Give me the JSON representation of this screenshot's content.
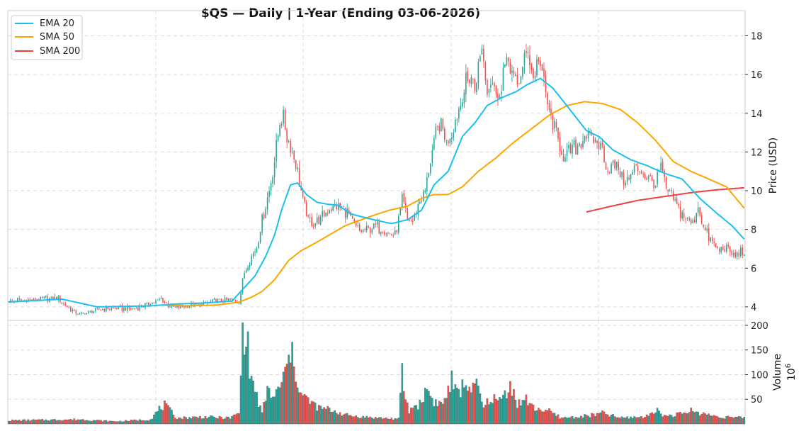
{
  "chart_data": {
    "type": "candlestick",
    "title": "$QS  —  Daily  |  1-Year (Ending 03-06-2026)",
    "price_panel": {
      "ylabel": "Price (USD)",
      "ylim": [
        3.3,
        19.3
      ],
      "yticks": [
        4,
        6,
        8,
        10,
        12,
        14,
        16,
        18
      ],
      "grid": true
    },
    "volume_panel": {
      "ylabel": "Volume",
      "unit_label": "10",
      "unit_exponent": "6",
      "ylim": [
        0,
        210
      ],
      "yticks": [
        50,
        100,
        150,
        200
      ],
      "grid": true,
      "up_color": "#26a69a",
      "down_color": "#ef5350"
    },
    "legend": {
      "position": "top-left",
      "entries": [
        {
          "label": "EMA 20",
          "color": "#19c0f0"
        },
        {
          "label": "SMA 50",
          "color": "#ffa500"
        },
        {
          "label": "SMA 200",
          "color": "#ef4040"
        }
      ]
    },
    "candle_colors": {
      "up": "#26a69a",
      "down": "#ef5350"
    },
    "price_anchors": [
      [
        0,
        4.3
      ],
      [
        10,
        4.35
      ],
      [
        20,
        4.45
      ],
      [
        28,
        4.4
      ],
      [
        32,
        4.1
      ],
      [
        36,
        3.8
      ],
      [
        40,
        3.6
      ],
      [
        45,
        3.7
      ],
      [
        52,
        3.9
      ],
      [
        62,
        3.9
      ],
      [
        70,
        3.9
      ],
      [
        78,
        4.1
      ],
      [
        86,
        4.4
      ],
      [
        90,
        4.1
      ],
      [
        94,
        3.95
      ],
      [
        100,
        4.05
      ],
      [
        108,
        4.1
      ],
      [
        116,
        4.3
      ],
      [
        126,
        4.35
      ],
      [
        130,
        4.3
      ],
      [
        133,
        5.8
      ],
      [
        137,
        6.6
      ],
      [
        140,
        7.1
      ],
      [
        143,
        8.5
      ],
      [
        147,
        10.0
      ],
      [
        150,
        11.6
      ],
      [
        153,
        13.5
      ],
      [
        155,
        13.7
      ],
      [
        157,
        12.8
      ],
      [
        160,
        12.0
      ],
      [
        163,
        11.0
      ],
      [
        166,
        9.5
      ],
      [
        169,
        8.5
      ],
      [
        172,
        8.3
      ],
      [
        176,
        8.5
      ],
      [
        180,
        9.0
      ],
      [
        184,
        9.2
      ],
      [
        188,
        9.1
      ],
      [
        192,
        8.8
      ],
      [
        195,
        8.2
      ],
      [
        198,
        7.9
      ],
      [
        202,
        8.0
      ],
      [
        206,
        8.2
      ],
      [
        210,
        8.0
      ],
      [
        214,
        7.8
      ],
      [
        218,
        7.7
      ],
      [
        222,
        9.5
      ],
      [
        225,
        8.5
      ],
      [
        228,
        8.4
      ],
      [
        232,
        9.5
      ],
      [
        235,
        10.0
      ],
      [
        238,
        11.5
      ],
      [
        241,
        13.0
      ],
      [
        244,
        13.5
      ],
      [
        247,
        12.4
      ],
      [
        250,
        13.0
      ],
      [
        253,
        14.0
      ],
      [
        255,
        14.5
      ],
      [
        258,
        15.5
      ],
      [
        261,
        15.9
      ],
      [
        263,
        15.2
      ],
      [
        265,
        16.3
      ],
      [
        267,
        17.5
      ],
      [
        270,
        15.0
      ],
      [
        272,
        16.0
      ],
      [
        274,
        15.6
      ],
      [
        276,
        14.4
      ],
      [
        279,
        16.3
      ],
      [
        282,
        16.7
      ],
      [
        285,
        15.8
      ],
      [
        287,
        15.4
      ],
      [
        290,
        16.3
      ],
      [
        293,
        17.3
      ],
      [
        296,
        15.8
      ],
      [
        299,
        16.8
      ],
      [
        302,
        15.6
      ],
      [
        305,
        14.0
      ],
      [
        308,
        13.1
      ],
      [
        311,
        12.4
      ],
      [
        314,
        11.6
      ],
      [
        317,
        12.0
      ],
      [
        320,
        12.2
      ],
      [
        323,
        12.6
      ],
      [
        326,
        13.0
      ],
      [
        329,
        12.7
      ],
      [
        332,
        12.5
      ],
      [
        335,
        12.2
      ],
      [
        338,
        11.0
      ],
      [
        341,
        11.4
      ],
      [
        344,
        11.2
      ],
      [
        347,
        10.6
      ],
      [
        350,
        10.5
      ],
      [
        353,
        11.2
      ],
      [
        356,
        11.1
      ],
      [
        359,
        10.8
      ],
      [
        362,
        10.6
      ],
      [
        365,
        10.3
      ],
      [
        368,
        11.3
      ],
      [
        371,
        10.0
      ],
      [
        374,
        9.8
      ],
      [
        377,
        9.2
      ],
      [
        380,
        8.8
      ],
      [
        383,
        8.5
      ],
      [
        386,
        8.3
      ],
      [
        389,
        9.2
      ],
      [
        392,
        8.1
      ],
      [
        395,
        7.6
      ],
      [
        398,
        7.2
      ],
      [
        401,
        6.9
      ],
      [
        404,
        7.1
      ],
      [
        407,
        6.8
      ],
      [
        410,
        6.6
      ],
      [
        413,
        6.9
      ],
      [
        415,
        6.75
      ]
    ],
    "volume_anchors": [
      [
        0,
        7
      ],
      [
        40,
        9
      ],
      [
        60,
        5
      ],
      [
        80,
        9
      ],
      [
        85,
        30
      ],
      [
        88,
        38
      ],
      [
        95,
        12
      ],
      [
        110,
        14
      ],
      [
        125,
        12
      ],
      [
        130,
        22
      ],
      [
        132,
        178
      ],
      [
        134,
        195
      ],
      [
        136,
        108
      ],
      [
        140,
        55
      ],
      [
        143,
        20
      ],
      [
        146,
        70
      ],
      [
        150,
        52
      ],
      [
        154,
        85
      ],
      [
        157,
        112
      ],
      [
        159,
        148
      ],
      [
        162,
        105
      ],
      [
        165,
        60
      ],
      [
        170,
        45
      ],
      [
        175,
        32
      ],
      [
        180,
        30
      ],
      [
        185,
        25
      ],
      [
        190,
        18
      ],
      [
        200,
        14
      ],
      [
        210,
        12
      ],
      [
        220,
        10
      ],
      [
        222,
        103
      ],
      [
        224,
        50
      ],
      [
        226,
        25
      ],
      [
        228,
        35
      ],
      [
        232,
        40
      ],
      [
        236,
        72
      ],
      [
        240,
        45
      ],
      [
        245,
        40
      ],
      [
        250,
        88
      ],
      [
        253,
        60
      ],
      [
        256,
        75
      ],
      [
        259,
        82
      ],
      [
        262,
        70
      ],
      [
        265,
        75
      ],
      [
        268,
        30
      ],
      [
        272,
        55
      ],
      [
        276,
        45
      ],
      [
        280,
        60
      ],
      [
        283,
        84
      ],
      [
        287,
        40
      ],
      [
        292,
        50
      ],
      [
        296,
        32
      ],
      [
        300,
        30
      ],
      [
        305,
        25
      ],
      [
        312,
        12
      ],
      [
        320,
        14
      ],
      [
        330,
        18
      ],
      [
        335,
        22
      ],
      [
        345,
        12
      ],
      [
        360,
        15
      ],
      [
        365,
        30
      ],
      [
        370,
        16
      ],
      [
        380,
        20
      ],
      [
        385,
        27
      ],
      [
        390,
        22
      ],
      [
        400,
        15
      ],
      [
        415,
        12
      ]
    ],
    "ema20_anchors": [
      [
        0,
        4.25
      ],
      [
        30,
        4.4
      ],
      [
        50,
        4.0
      ],
      [
        80,
        4.05
      ],
      [
        95,
        4.15
      ],
      [
        110,
        4.2
      ],
      [
        126,
        4.3
      ],
      [
        133,
        5.0
      ],
      [
        139,
        5.6
      ],
      [
        145,
        6.6
      ],
      [
        150,
        7.7
      ],
      [
        154,
        9.0
      ],
      [
        159,
        10.3
      ],
      [
        163,
        10.4
      ],
      [
        168,
        9.8
      ],
      [
        174,
        9.4
      ],
      [
        180,
        9.3
      ],
      [
        186,
        9.25
      ],
      [
        193,
        8.8
      ],
      [
        206,
        8.5
      ],
      [
        216,
        8.3
      ],
      [
        225,
        8.5
      ],
      [
        233,
        9.0
      ],
      [
        240,
        10.3
      ],
      [
        248,
        11.0
      ],
      [
        256,
        12.8
      ],
      [
        263,
        13.5
      ],
      [
        270,
        14.4
      ],
      [
        278,
        14.8
      ],
      [
        286,
        15.1
      ],
      [
        293,
        15.5
      ],
      [
        300,
        15.8
      ],
      [
        307,
        15.3
      ],
      [
        314,
        14.5
      ],
      [
        320,
        13.8
      ],
      [
        326,
        13.1
      ],
      [
        333,
        12.8
      ],
      [
        341,
        12.1
      ],
      [
        351,
        11.6
      ],
      [
        360,
        11.3
      ],
      [
        370,
        10.9
      ],
      [
        380,
        10.6
      ],
      [
        390,
        9.6
      ],
      [
        400,
        8.8
      ],
      [
        408,
        8.2
      ],
      [
        415,
        7.5
      ]
    ],
    "sma50_anchors": [
      [
        86,
        4.1
      ],
      [
        100,
        4.05
      ],
      [
        118,
        4.1
      ],
      [
        130,
        4.25
      ],
      [
        137,
        4.5
      ],
      [
        143,
        4.8
      ],
      [
        150,
        5.4
      ],
      [
        158,
        6.4
      ],
      [
        165,
        6.9
      ],
      [
        175,
        7.4
      ],
      [
        190,
        8.2
      ],
      [
        205,
        8.7
      ],
      [
        215,
        9.0
      ],
      [
        225,
        9.2
      ],
      [
        233,
        9.6
      ],
      [
        240,
        9.8
      ],
      [
        248,
        9.8
      ],
      [
        256,
        10.2
      ],
      [
        265,
        11.0
      ],
      [
        275,
        11.7
      ],
      [
        285,
        12.5
      ],
      [
        295,
        13.2
      ],
      [
        305,
        13.9
      ],
      [
        315,
        14.4
      ],
      [
        325,
        14.6
      ],
      [
        335,
        14.5
      ],
      [
        345,
        14.2
      ],
      [
        355,
        13.5
      ],
      [
        365,
        12.6
      ],
      [
        375,
        11.5
      ],
      [
        385,
        11.0
      ],
      [
        395,
        10.6
      ],
      [
        405,
        10.2
      ],
      [
        415,
        9.1
      ]
    ],
    "sma200_anchors": [
      [
        326,
        8.9
      ],
      [
        340,
        9.2
      ],
      [
        355,
        9.5
      ],
      [
        370,
        9.7
      ],
      [
        385,
        9.9
      ],
      [
        400,
        10.05
      ],
      [
        415,
        10.15
      ]
    ]
  }
}
